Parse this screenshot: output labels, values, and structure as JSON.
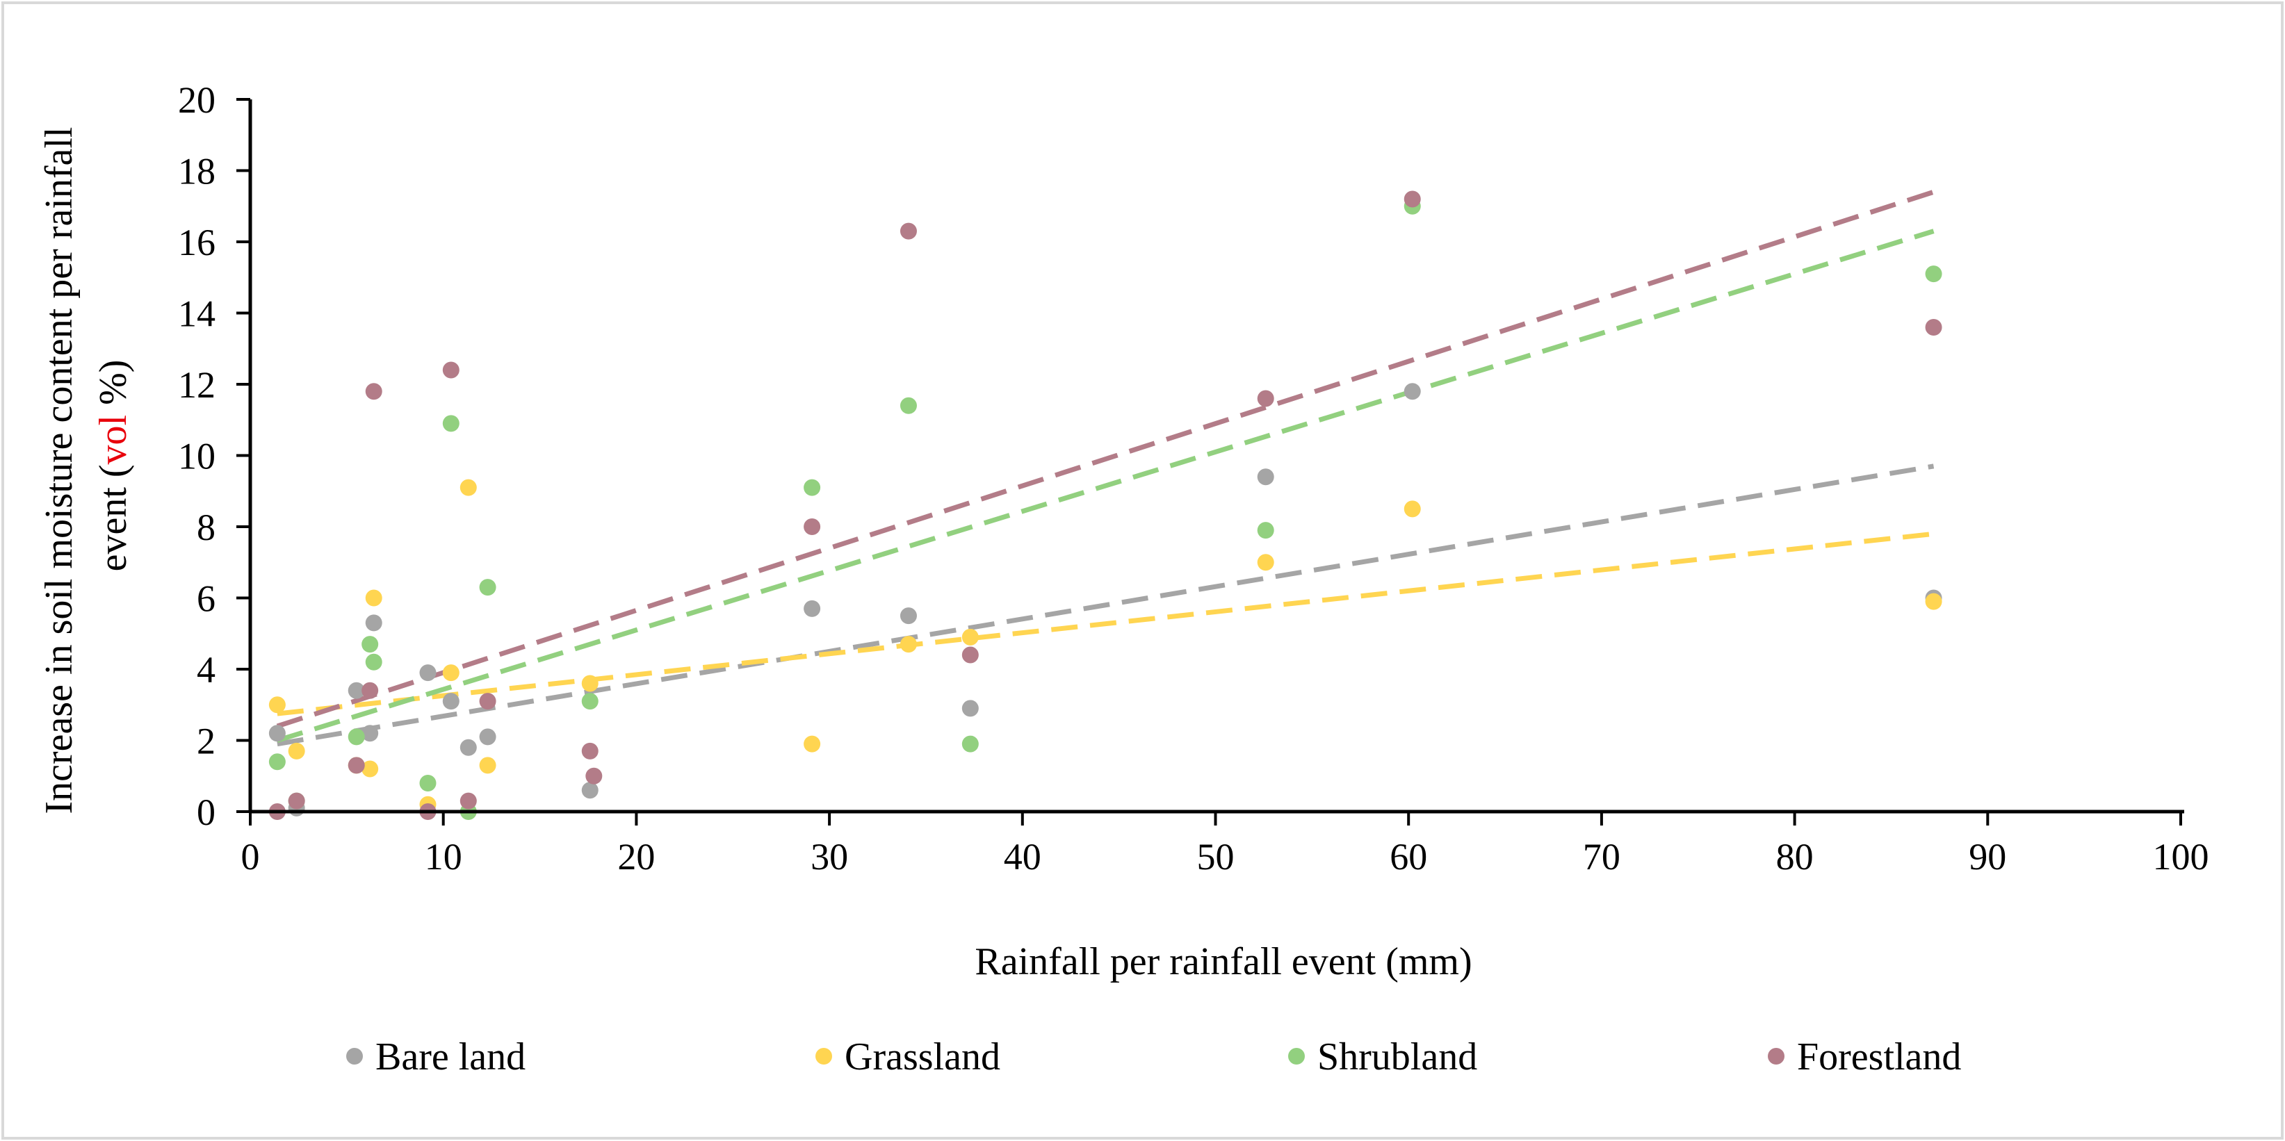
{
  "chart_data": {
    "type": "scatter",
    "title": "",
    "xlabel": "Rainfall per rainfall event (mm)",
    "ylabel": {
      "line1": "Increase in soil moisture content per rainfall",
      "line2_prefix": "event (",
      "line2_highlight": "vol",
      "line2_suffix": " %)"
    },
    "xlim": [
      0,
      100
    ],
    "ylim": [
      0,
      20
    ],
    "x_ticks": [
      0,
      10,
      20,
      30,
      40,
      50,
      60,
      70,
      80,
      90,
      100
    ],
    "y_ticks": [
      0,
      2,
      4,
      6,
      8,
      10,
      12,
      14,
      16,
      18,
      20
    ],
    "grid": false,
    "legend_position": "bottom",
    "highlight_color": "#e8000b",
    "series": [
      {
        "name": "Bare land",
        "color": "#a5a5a5",
        "x": [
          1.4,
          2.4,
          5.5,
          6.2,
          6.4,
          9.2,
          10.4,
          11.3,
          12.3,
          17.6,
          29.1,
          34.1,
          37.3,
          52.6,
          60.2,
          87.2
        ],
        "y": [
          2.2,
          0.1,
          3.4,
          2.2,
          5.3,
          3.9,
          3.1,
          1.8,
          2.1,
          0.6,
          5.7,
          5.5,
          2.9,
          9.4,
          11.8,
          6.0
        ],
        "trend": {
          "x": [
            1.4,
            87.2
          ],
          "y": [
            1.9,
            9.7
          ]
        }
      },
      {
        "name": "Grassland",
        "color": "#ffd551",
        "x": [
          1.4,
          2.4,
          5.5,
          6.2,
          6.4,
          9.2,
          10.4,
          11.3,
          12.3,
          17.6,
          29.1,
          34.1,
          37.3,
          52.6,
          60.2,
          87.2
        ],
        "y": [
          3.0,
          1.7,
          1.3,
          1.2,
          6.0,
          0.2,
          3.9,
          9.1,
          1.3,
          3.6,
          1.9,
          4.7,
          4.9,
          7.0,
          8.5,
          5.9
        ],
        "trend": {
          "x": [
            1.4,
            87.2
          ],
          "y": [
            2.75,
            7.8
          ]
        }
      },
      {
        "name": "Shrubland",
        "color": "#92d07f",
        "x": [
          1.4,
          2.4,
          5.5,
          6.2,
          6.4,
          9.2,
          10.4,
          11.3,
          12.3,
          17.6,
          29.1,
          34.1,
          37.3,
          52.6,
          60.2,
          87.2
        ],
        "y": [
          1.4,
          0.3,
          2.1,
          4.7,
          4.2,
          0.8,
          10.9,
          0.0,
          6.3,
          3.1,
          9.1,
          11.4,
          1.9,
          7.9,
          17.0,
          15.1
        ],
        "trend": {
          "x": [
            1.4,
            87.2
          ],
          "y": [
            2.0,
            16.3
          ]
        }
      },
      {
        "name": "Forestland",
        "color": "#b37c88",
        "x": [
          1.4,
          2.4,
          5.5,
          6.2,
          6.4,
          9.2,
          10.4,
          11.3,
          12.3,
          17.6,
          17.8,
          29.1,
          34.1,
          37.3,
          52.6,
          60.2,
          87.2
        ],
        "y": [
          0.0,
          0.3,
          1.3,
          3.4,
          11.8,
          0.0,
          12.4,
          0.3,
          3.1,
          1.7,
          1.0,
          8.0,
          16.3,
          4.4,
          11.6,
          17.2,
          13.6
        ],
        "trend": {
          "x": [
            1.4,
            87.2
          ],
          "y": [
            2.4,
            17.4
          ]
        }
      }
    ]
  }
}
